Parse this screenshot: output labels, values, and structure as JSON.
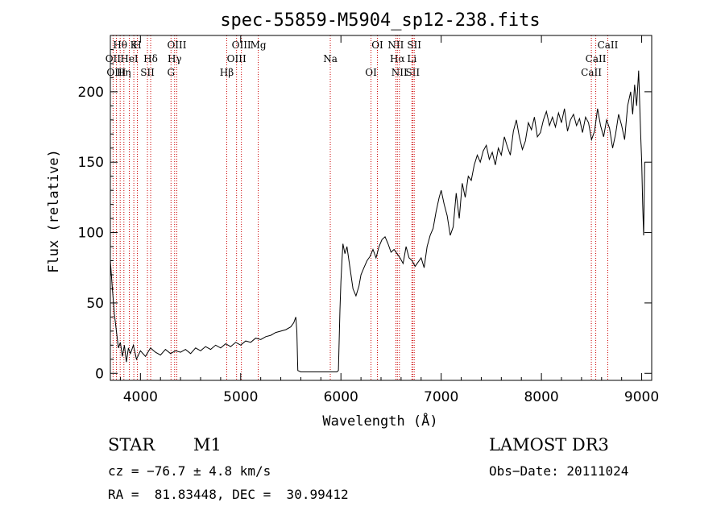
{
  "chart_data": {
    "type": "line",
    "title": "spec-55859-M5904_sp12-238.fits",
    "xlabel": "Wavelength (Å)",
    "ylabel": "Flux (relative)",
    "xlim": [
      3700,
      9100
    ],
    "ylim": [
      -5,
      240
    ],
    "xticks": [
      4000,
      5000,
      6000,
      7000,
      8000,
      9000
    ],
    "yticks": [
      0,
      50,
      100,
      150,
      200
    ],
    "grid": false,
    "line_color": "#000000",
    "marker_color": "#cc0000",
    "series": [
      {
        "name": "flux",
        "x": [
          3700,
          3720,
          3740,
          3760,
          3780,
          3800,
          3820,
          3840,
          3860,
          3880,
          3900,
          3930,
          3960,
          4000,
          4050,
          4100,
          4150,
          4200,
          4250,
          4300,
          4350,
          4400,
          4450,
          4500,
          4550,
          4600,
          4650,
          4700,
          4750,
          4800,
          4850,
          4900,
          4950,
          5000,
          5050,
          5100,
          5150,
          5200,
          5250,
          5300,
          5350,
          5400,
          5450,
          5500,
          5530,
          5550,
          5560,
          5570,
          5600,
          5700,
          5800,
          5900,
          5960,
          5975,
          5990,
          6000,
          6010,
          6020,
          6040,
          6060,
          6080,
          6100,
          6120,
          6150,
          6180,
          6200,
          6230,
          6260,
          6290,
          6320,
          6350,
          6380,
          6410,
          6440,
          6470,
          6500,
          6530,
          6560,
          6590,
          6620,
          6650,
          6680,
          6710,
          6740,
          6770,
          6800,
          6830,
          6860,
          6890,
          6920,
          6950,
          6980,
          7000,
          7030,
          7060,
          7090,
          7120,
          7150,
          7180,
          7210,
          7240,
          7270,
          7300,
          7330,
          7360,
          7390,
          7420,
          7450,
          7480,
          7510,
          7540,
          7570,
          7600,
          7630,
          7660,
          7690,
          7720,
          7750,
          7780,
          7810,
          7840,
          7870,
          7900,
          7930,
          7960,
          7990,
          8020,
          8050,
          8080,
          8110,
          8140,
          8170,
          8200,
          8230,
          8260,
          8290,
          8320,
          8350,
          8380,
          8410,
          8440,
          8470,
          8500,
          8530,
          8560,
          8590,
          8620,
          8650,
          8680,
          8710,
          8740,
          8770,
          8800,
          8830,
          8860,
          8890,
          8910,
          8930,
          8950,
          8970,
          8990,
          9000,
          9010,
          9020,
          9030
        ],
        "y": [
          80,
          60,
          42,
          30,
          18,
          22,
          12,
          20,
          8,
          18,
          14,
          20,
          10,
          16,
          12,
          18,
          15,
          13,
          17,
          14,
          16,
          15,
          17,
          14,
          18,
          16,
          19,
          17,
          20,
          18,
          21,
          19,
          22,
          20,
          23,
          22,
          25,
          24,
          26,
          27,
          29,
          30,
          31,
          33,
          36,
          40,
          30,
          2,
          1,
          1,
          1,
          1,
          1,
          2,
          45,
          65,
          80,
          92,
          85,
          90,
          80,
          70,
          60,
          55,
          62,
          70,
          75,
          80,
          83,
          88,
          82,
          90,
          95,
          97,
          92,
          86,
          88,
          85,
          82,
          78,
          90,
          82,
          80,
          76,
          79,
          82,
          75,
          90,
          98,
          103,
          115,
          125,
          130,
          120,
          112,
          98,
          104,
          128,
          110,
          135,
          125,
          140,
          137,
          148,
          155,
          150,
          158,
          162,
          152,
          157,
          148,
          160,
          155,
          168,
          161,
          155,
          172,
          180,
          168,
          159,
          165,
          178,
          173,
          182,
          168,
          171,
          180,
          186,
          176,
          182,
          175,
          185,
          178,
          188,
          172,
          180,
          184,
          176,
          181,
          171,
          182,
          178,
          166,
          172,
          188,
          176,
          168,
          180,
          174,
          160,
          170,
          184,
          176,
          166,
          190,
          200,
          184,
          205,
          190,
          215,
          170,
          150,
          120,
          98,
          150
        ]
      }
    ],
    "lines": [
      {
        "label": "Hθ",
        "wl": 3798
      },
      {
        "label": "OII",
        "wl": 3727
      },
      {
        "label": "OIII",
        "wl": 3760
      },
      {
        "label": "K",
        "wl": 3934
      },
      {
        "label": "HeI",
        "wl": 3889
      },
      {
        "label": "Hη",
        "wl": 3835
      },
      {
        "label": "H",
        "wl": 3969
      },
      {
        "label": "Hδ",
        "wl": 4102
      },
      {
        "label": "SII",
        "wl": 4070
      },
      {
        "label": "OIII",
        "wl": 4363
      },
      {
        "label": "Hγ",
        "wl": 4341
      },
      {
        "label": "G",
        "wl": 4305
      },
      {
        "label": "OIII",
        "wl": 5007
      },
      {
        "label": "OIII",
        "wl": 4959
      },
      {
        "label": "Hβ",
        "wl": 4861
      },
      {
        "label": "Mg",
        "wl": 5175
      },
      {
        "label": "Na",
        "wl": 5894
      },
      {
        "label": "OI",
        "wl": 6300
      },
      {
        "label": "OI",
        "wl": 6364
      },
      {
        "label": "Hα",
        "wl": 6563
      },
      {
        "label": "SII",
        "wl": 6716
      },
      {
        "label": "NII",
        "wl": 6548
      },
      {
        "label": "Li",
        "wl": 6708
      },
      {
        "label": "NII",
        "wl": 6583
      },
      {
        "label": "SII",
        "wl": 6731
      },
      {
        "label": "CaII",
        "wl": 8542
      },
      {
        "label": "CaII",
        "wl": 8498
      },
      {
        "label": "CaII",
        "wl": 8662
      }
    ]
  },
  "info": {
    "object_type": "STAR",
    "subclass": "M1",
    "survey": "LAMOST DR3",
    "cz": "cz = −76.7 ± 4.8 km/s",
    "obs_date": "Obs−Date: 20111024",
    "coords": "RA =  81.83448, DEC =  30.99412"
  }
}
